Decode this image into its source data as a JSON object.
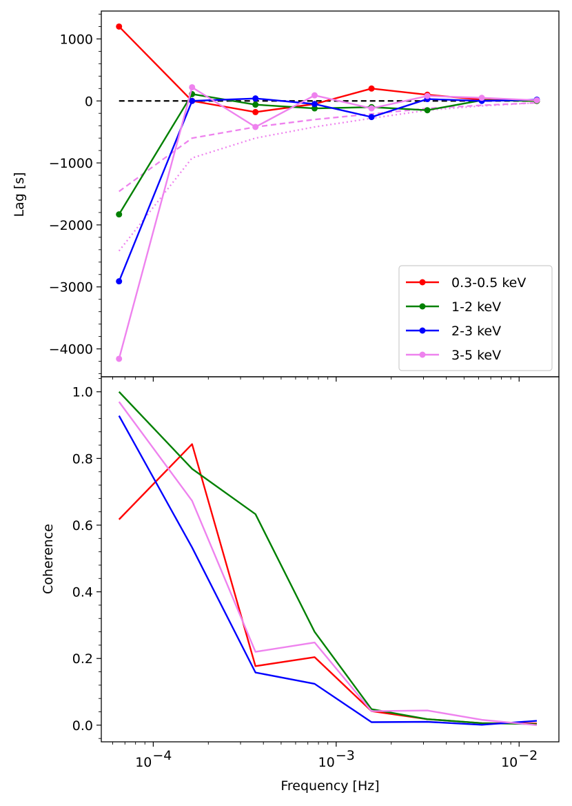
{
  "chart_data": [
    {
      "type": "line",
      "panel": "top",
      "xscale": "log",
      "xlim": [
        5.2e-05,
        0.0165
      ],
      "ylim": [
        -4450,
        1450
      ],
      "ylabel": "Lag [s]",
      "x": [
        6.5e-05,
        0.000163,
        0.000362,
        0.000762,
        0.00156,
        0.00315,
        0.00625,
        0.0125
      ],
      "yticks": [
        {
          "value": 1000,
          "label": "1000"
        },
        {
          "value": 0,
          "label": "0"
        },
        {
          "value": -1000,
          "label": "−1000"
        },
        {
          "value": -2000,
          "label": "−2000"
        },
        {
          "value": -3000,
          "label": "−3000"
        },
        {
          "value": -4000,
          "label": "−4000"
        }
      ],
      "series": [
        {
          "name": "0.3-0.5 keV",
          "color": "#ff0000",
          "values": [
            1200,
            0,
            -180,
            -50,
            200,
            100,
            20,
            0
          ]
        },
        {
          "name": "1-2 keV",
          "color": "#008000",
          "values": [
            -1830,
            110,
            -60,
            -120,
            -100,
            -150,
            10,
            0
          ]
        },
        {
          "name": "2-3 keV",
          "color": "#0000ff",
          "values": [
            -2910,
            0,
            40,
            -50,
            -260,
            30,
            0,
            20
          ]
        },
        {
          "name": "3-5 keV",
          "color": "#ee82ee",
          "values": [
            -4160,
            220,
            -420,
            90,
            -120,
            80,
            50,
            10
          ]
        }
      ],
      "reference_lines": [
        {
          "name": "zero",
          "style": "dashed",
          "color": "#000000",
          "x": [
            6.5e-05,
            0.0125
          ],
          "values": [
            0,
            0
          ]
        },
        {
          "name": "model dashed",
          "style": "dashed",
          "color": "#ee82ee",
          "values": [
            -1460,
            -600,
            -420,
            -300,
            -210,
            -120,
            -70,
            -30
          ]
        },
        {
          "name": "model dotted",
          "style": "dotted",
          "color": "#ee82ee",
          "values": [
            -2420,
            -920,
            -600,
            -420,
            -280,
            -150,
            -80,
            -30
          ]
        }
      ],
      "legend": {
        "position": "bottom-right",
        "entries": [
          "0.3-0.5 keV",
          "1-2 keV",
          "2-3 keV",
          "3-5 keV"
        ]
      }
    },
    {
      "type": "line",
      "panel": "bottom",
      "xscale": "log",
      "xlim": [
        5.2e-05,
        0.0165
      ],
      "ylim": [
        -0.05,
        1.045
      ],
      "xlabel": "Frequency [Hz]",
      "ylabel": "Coherence",
      "x": [
        6.5e-05,
        0.000163,
        0.000362,
        0.000762,
        0.00156,
        0.00315,
        0.00625,
        0.0125
      ],
      "xticks": [
        {
          "value": 0.0001,
          "base": "10",
          "exp": "−4"
        },
        {
          "value": 0.001,
          "base": "10",
          "exp": "−3"
        },
        {
          "value": 0.01,
          "base": "10",
          "exp": "−2"
        }
      ],
      "yticks": [
        {
          "value": 0.0,
          "label": "0.0"
        },
        {
          "value": 0.2,
          "label": "0.2"
        },
        {
          "value": 0.4,
          "label": "0.4"
        },
        {
          "value": 0.6,
          "label": "0.6"
        },
        {
          "value": 0.8,
          "label": "0.8"
        },
        {
          "value": 1.0,
          "label": "1.0"
        }
      ],
      "series": [
        {
          "name": "0.3-0.5 keV",
          "color": "#ff0000",
          "values": [
            0.617,
            0.843,
            0.177,
            0.204,
            0.042,
            0.018,
            0.006,
            0.005
          ]
        },
        {
          "name": "1-2 keV",
          "color": "#008000",
          "values": [
            1.0,
            0.769,
            0.633,
            0.28,
            0.048,
            0.018,
            0.006,
            0.003
          ]
        },
        {
          "name": "2-3 keV",
          "color": "#0000ff",
          "values": [
            0.928,
            0.533,
            0.158,
            0.124,
            0.009,
            0.01,
            0.001,
            0.013
          ]
        },
        {
          "name": "3-5 keV",
          "color": "#ee82ee",
          "values": [
            0.97,
            0.673,
            0.22,
            0.248,
            0.042,
            0.044,
            0.016,
            0.0
          ]
        }
      ]
    }
  ]
}
